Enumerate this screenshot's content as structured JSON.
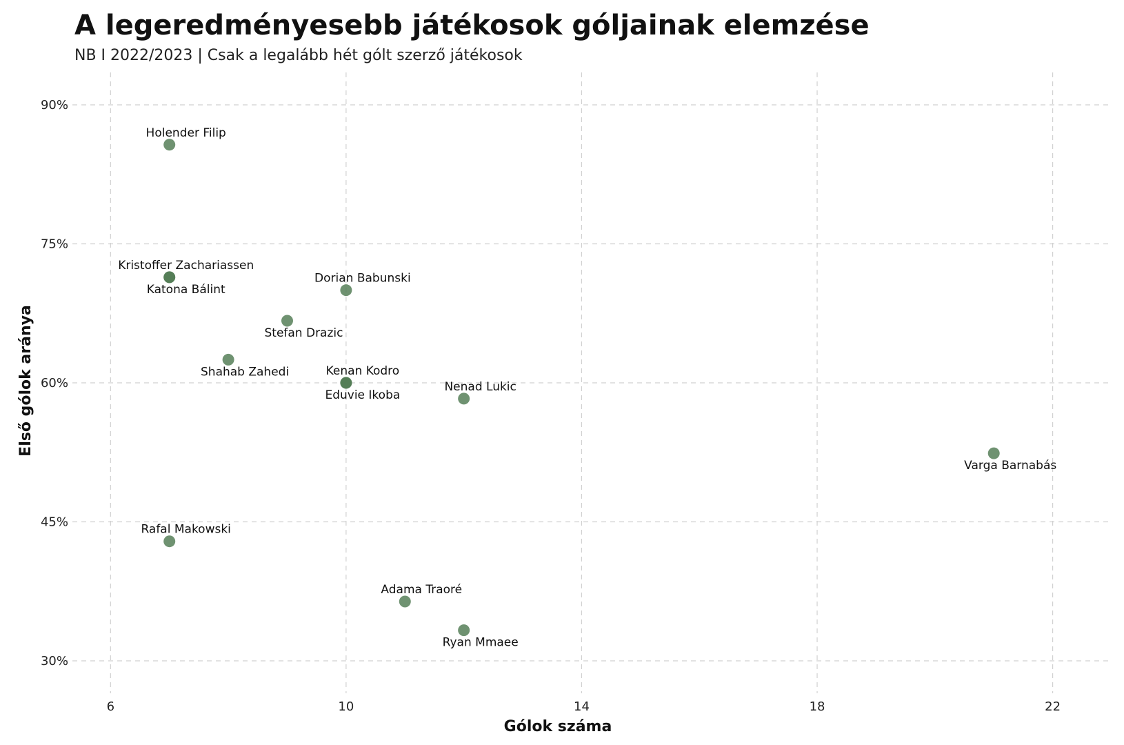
{
  "title": "A legeredményesebb játékosok góljainak elemzése",
  "subtitle": "NB I 2022/2023 | Csak a legalább hét gólt szerző játékosok",
  "colors": {
    "point": "#4f7a52",
    "grid": "#d0d0d0"
  },
  "chart_data": {
    "type": "scatter",
    "title": "A legeredményesebb játékosok góljainak elemzése",
    "subtitle": "NB I 2022/2023 | Csak a legalább hét gólt szerző játékosok",
    "xlabel": "Gólok száma",
    "ylabel": "Első gólok aránya",
    "xlim": [
      5.2,
      23
    ],
    "ylim": [
      26.5,
      93.5
    ],
    "xticks": [
      6,
      10,
      14,
      18,
      22
    ],
    "yticks": [
      30,
      45,
      60,
      75,
      90
    ],
    "xtick_labels": [
      "6",
      "10",
      "14",
      "18",
      "22"
    ],
    "ytick_labels": [
      "30%",
      "45%",
      "60%",
      "75%",
      "90%"
    ],
    "grid": true,
    "points": [
      {
        "name": "Holender Filip",
        "x": 7,
        "y": 85.7,
        "label_pos": "above"
      },
      {
        "name": "Kristoffer Zachariassen",
        "x": 7,
        "y": 71.4,
        "label_pos": "above"
      },
      {
        "name": "Katona Bálint",
        "x": 7,
        "y": 71.4,
        "label_pos": "below"
      },
      {
        "name": "Dorian Babunski",
        "x": 10,
        "y": 70.0,
        "label_pos": "above"
      },
      {
        "name": "Stefan Drazic",
        "x": 9,
        "y": 66.7,
        "label_pos": "below"
      },
      {
        "name": "Shahab Zahedi",
        "x": 8,
        "y": 62.5,
        "label_pos": "below"
      },
      {
        "name": "Kenan Kodro",
        "x": 10,
        "y": 60.0,
        "label_pos": "above"
      },
      {
        "name": "Eduvie Ikoba",
        "x": 10,
        "y": 60.0,
        "label_pos": "below"
      },
      {
        "name": "Nenad Lukic",
        "x": 12,
        "y": 58.3,
        "label_pos": "above"
      },
      {
        "name": "Varga Barnabás",
        "x": 21,
        "y": 52.4,
        "label_pos": "below"
      },
      {
        "name": "Rafal Makowski",
        "x": 7,
        "y": 42.9,
        "label_pos": "above"
      },
      {
        "name": "Adama Traoré",
        "x": 11,
        "y": 36.4,
        "label_pos": "above"
      },
      {
        "name": "Ryan Mmaee",
        "x": 12,
        "y": 33.3,
        "label_pos": "below"
      }
    ]
  }
}
